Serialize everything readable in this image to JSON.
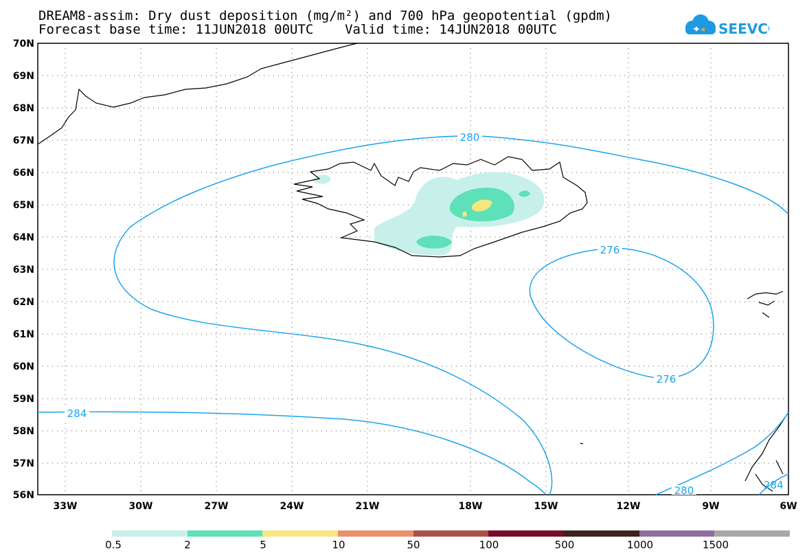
{
  "header": {
    "title_line1": "DREAM8-assim: Dry dust deposition (mg/m²) and 700 hPa geopotential (gpdm)",
    "title_line2": "Forecast base time: 11JUN2018 00UTC    Valid time: 14JUN2018 00UTC"
  },
  "logo": {
    "text": "SEEVCCC",
    "color": "#1e9ae0",
    "accent": "#f5a623"
  },
  "map": {
    "lat_labels": [
      "70N",
      "69N",
      "68N",
      "67N",
      "66N",
      "65N",
      "64N",
      "63N",
      "62N",
      "61N",
      "60N",
      "59N",
      "58N",
      "57N",
      "56N"
    ],
    "lon_labels": [
      "33W",
      "30W",
      "27W",
      "24W",
      "21W",
      "18W",
      "15W",
      "12W",
      "9W",
      "6W"
    ],
    "contour_color": "#1aa3ee",
    "contour_labels": [
      "280",
      "276",
      "276",
      "284",
      "280",
      "284"
    ]
  },
  "legend": {
    "colors": [
      "#c8f0ea",
      "#5ee0b8",
      "#f6e780",
      "#e8916b",
      "#a8524a",
      "#7a0a2a",
      "#3d2418",
      "#8e6e9e",
      "#a8a8a8"
    ],
    "labels": [
      "0.5",
      "2",
      "5",
      "10",
      "50",
      "100",
      "500",
      "1000",
      "1500"
    ]
  }
}
